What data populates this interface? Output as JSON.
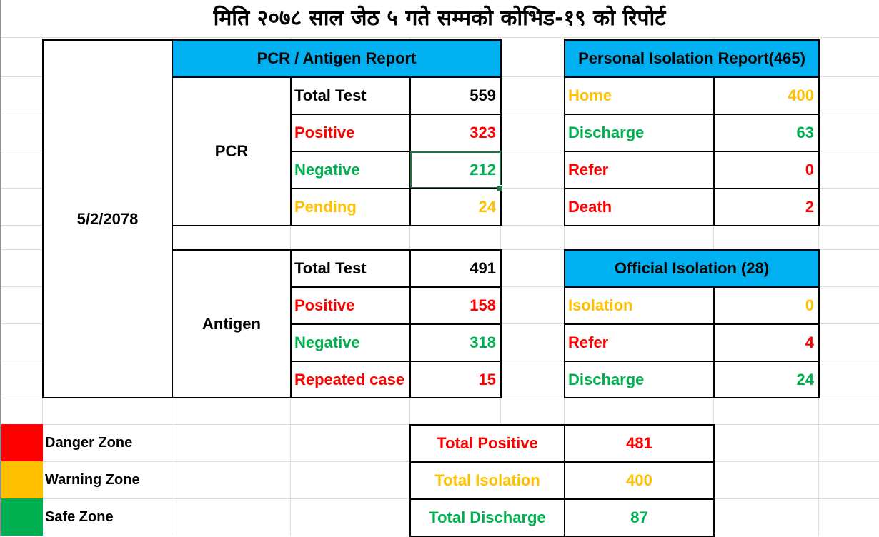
{
  "title": "मिति २०७८ साल जेठ ५ गते सम्मको कोभिड-१९ को रिपोर्ट",
  "date": "5/2/2078",
  "pcr_antigen": {
    "header": "PCR / Antigen Report",
    "pcr": {
      "label": "PCR",
      "rows": [
        {
          "label": "Total Test",
          "value": "559"
        },
        {
          "label": "Positive",
          "value": "323"
        },
        {
          "label": "Negative",
          "value": "212"
        },
        {
          "label": "Pending",
          "value": "24"
        }
      ]
    },
    "antigen": {
      "label": "Antigen",
      "rows": [
        {
          "label": "Total Test",
          "value": "491"
        },
        {
          "label": "Positive",
          "value": "158"
        },
        {
          "label": "Negative",
          "value": "318"
        },
        {
          "label": "Repeated case",
          "value": "15"
        }
      ]
    }
  },
  "personal_isolation": {
    "header": "Personal Isolation Report(465)",
    "rows": [
      {
        "label": "Home",
        "value": "400"
      },
      {
        "label": "Discharge",
        "value": "63"
      },
      {
        "label": "Refer",
        "value": "0"
      },
      {
        "label": "Death",
        "value": "2"
      }
    ]
  },
  "official_isolation": {
    "header": "Official Isolation (28)",
    "rows": [
      {
        "label": "Isolation",
        "value": "0"
      },
      {
        "label": "Refer",
        "value": "4"
      },
      {
        "label": "Discharge",
        "value": "24"
      }
    ]
  },
  "totals": [
    {
      "label": "Total Positive",
      "value": "481"
    },
    {
      "label": "Total Isolation",
      "value": "400"
    },
    {
      "label": "Total Discharge",
      "value": "87"
    }
  ],
  "legend": [
    {
      "label": "Danger Zone",
      "color": "#ff0000"
    },
    {
      "label": "Warning Zone",
      "color": "#ffc000"
    },
    {
      "label": "Safe Zone",
      "color": "#00b050"
    }
  ],
  "colors": {
    "header_bg": "#00b0f0",
    "danger": "#ff0000",
    "warning": "#ffc000",
    "safe": "#00b050",
    "selection": "#217346"
  }
}
